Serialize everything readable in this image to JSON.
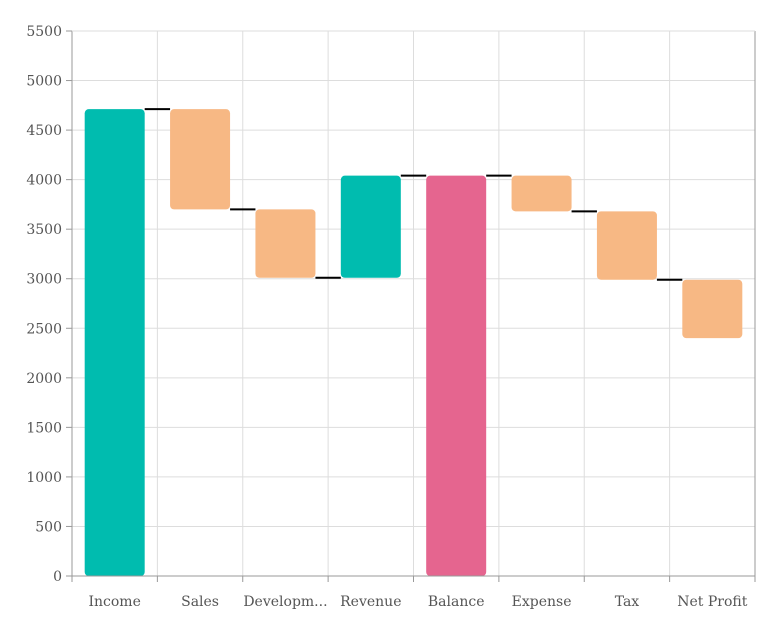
{
  "chart_data": {
    "type": "waterfall",
    "title": "",
    "xlabel": "",
    "ylabel": "",
    "ylim": [
      0,
      5500
    ],
    "ytick_step": 500,
    "grid": true,
    "categories": [
      "Income",
      "Sales",
      "Developm...",
      "Revenue",
      "Balance",
      "Expense",
      "Tax",
      "Net Profit"
    ],
    "bars": [
      {
        "label": "Income",
        "start": 0,
        "end": 4711,
        "kind": "total"
      },
      {
        "label": "Sales",
        "start": 4711,
        "end": 3700,
        "kind": "decrease"
      },
      {
        "label": "Developm...",
        "start": 3700,
        "end": 3010,
        "kind": "decrease"
      },
      {
        "label": "Revenue",
        "start": 3010,
        "end": 4040,
        "kind": "increase"
      },
      {
        "label": "Balance",
        "start": 0,
        "end": 4040,
        "kind": "subtotal"
      },
      {
        "label": "Expense",
        "start": 4040,
        "end": 3680,
        "kind": "decrease"
      },
      {
        "label": "Tax",
        "start": 3680,
        "end": 2990,
        "kind": "decrease"
      },
      {
        "label": "Net Profit",
        "start": 2990,
        "end": 2400,
        "kind": "decrease"
      }
    ],
    "colors": {
      "total": "#00bcaf",
      "increase": "#00bcaf",
      "decrease": "#f7b884",
      "subtotal": "#e5658f",
      "connector": "#000000",
      "grid": "#dddddd",
      "axis": "#999999",
      "text": "#555555"
    }
  }
}
